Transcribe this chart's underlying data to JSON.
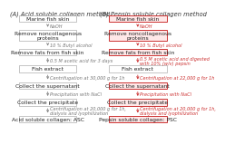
{
  "title_A": "(A) Acid soluble collagen method",
  "title_B": "(B) Pepsin soluble collagen method",
  "col_A": {
    "boxes": [
      {
        "text": "Marine fish skin",
        "highlighted": false,
        "bold": false
      },
      {
        "text": "Remove noncollagenous\nproteins",
        "highlighted": false,
        "bold": false
      },
      {
        "text": "Remove fats from fish skin",
        "highlighted": false,
        "bold": true
      },
      {
        "text": "Fish extract",
        "highlighted": false,
        "bold": false
      },
      {
        "text": "Collect the supernatant",
        "highlighted": false,
        "bold": false
      },
      {
        "text": "Collect the precipitate",
        "highlighted": false,
        "bold": false
      },
      {
        "text": "Acid soluble collagen: ASC",
        "highlighted": false,
        "bold": false
      }
    ],
    "arrows": [
      "NaOH",
      "10 % Butyl alcohol",
      "0.5 M acetic acid for 3 days",
      "Centrifugation at 30,000 g for 1h",
      "Precipitation with NaCl",
      "Centrifugation at 20,000 g for 1h,\ndialysis and lyophilization"
    ]
  },
  "col_B": {
    "boxes": [
      {
        "text": "Marine fish skin",
        "highlighted": true,
        "bold": false
      },
      {
        "text": "Remove noncollagenous\nproteins",
        "highlighted": true,
        "bold": false
      },
      {
        "text": "Remove fats from fish skin",
        "highlighted": true,
        "bold": false
      },
      {
        "text": "Fish extract",
        "highlighted": false,
        "bold": false
      },
      {
        "text": "Collect the supernatant",
        "highlighted": true,
        "bold": false
      },
      {
        "text": "Collect the precipitate",
        "highlighted": true,
        "bold": false
      },
      {
        "text": "Pepsin soluble collagen: PSC",
        "highlighted": true,
        "bold": false
      }
    ],
    "arrows": [
      "NaOH",
      "10 % Butyl alcohol",
      "0.5 M acetic acid and digested\nwith 10% (w/v) pepsin",
      "Centrifugation at 22,000 g for 1h",
      "Precipitation with NaCl",
      "Centrifugation at 20,000 g for 1h,\ndialysis and lyophilization"
    ]
  },
  "box_color_normal": "#ffffff",
  "box_color_highlight": "#ffe8e8",
  "box_border_normal": "#999999",
  "box_border_highlight": "#cc3333",
  "arrow_color_A": "#888888",
  "arrow_color_B": "#cc3333",
  "text_color_normal": "#222222",
  "text_color_highlight": "#222222",
  "label_color_A": "#777777",
  "label_color_B": "#cc3333",
  "title_color": "#333333",
  "bg_color": "#ffffff"
}
